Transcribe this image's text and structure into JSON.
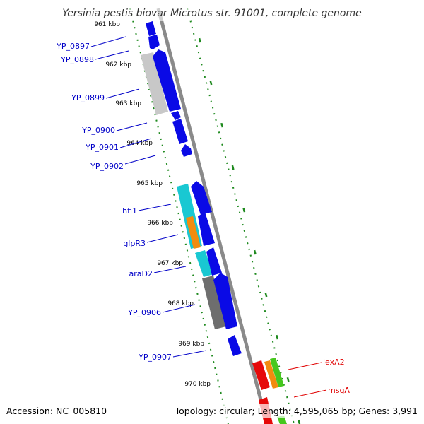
{
  "title": "Yersinia pestis biovar Microtus str. 91001, complete genome",
  "accession": "Accession: NC_005810",
  "topology": "Topology: circular; Length: 4,595,065 bp; Genes: 3,991",
  "colors": {
    "background": "#ffffff",
    "backbone": "#8a8a8a",
    "ticks": "#1f8a1f",
    "label_left": "#0000c8",
    "label_right": "#e00000",
    "forward_gene": "#0a0ae6",
    "cyan_feature": "#19c8d2",
    "orange_feature": "#f28c0f",
    "gray_feature": "#6e6e6e",
    "light_gray_feature": "#c8c8c8",
    "red_gene": "#e60a0a",
    "green_gene": "#46c81e"
  },
  "kbp_markers": [
    "961 kbp",
    "962 kbp",
    "963 kbp",
    "964 kbp",
    "965 kbp",
    "966 kbp",
    "967 kbp",
    "968 kbp",
    "969 kbp",
    "970 kbp"
  ],
  "left_gene_labels": [
    "YP_0897",
    "YP_0898",
    "YP_0899",
    "YP_0900",
    "YP_0901",
    "YP_0902",
    "hfi1",
    "glpR3",
    "araD2",
    "YP_0906",
    "YP_0907"
  ],
  "right_gene_labels": [
    "lexA2",
    "msgA"
  ]
}
